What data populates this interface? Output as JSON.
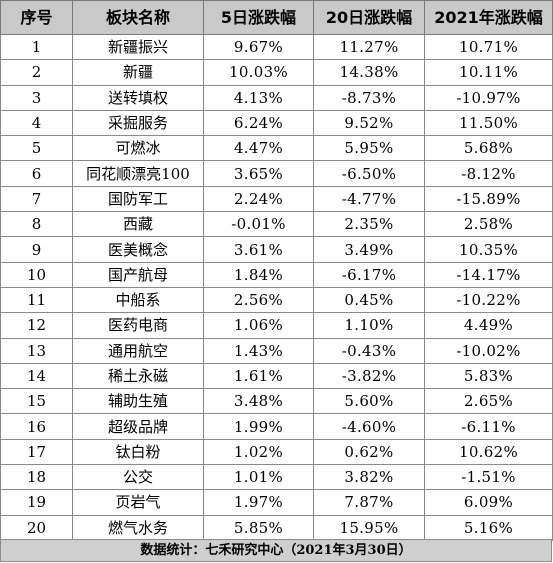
{
  "table": {
    "headers": [
      "序号",
      "板块名称",
      "5日涨跌幅",
      "20日涨跌幅",
      "2021年涨跌幅"
    ],
    "rows": [
      [
        "1",
        "新疆振兴",
        "9.67%",
        "11.27%",
        "10.71%"
      ],
      [
        "2",
        "新疆",
        "10.03%",
        "14.38%",
        "10.11%"
      ],
      [
        "3",
        "送转填权",
        "4.13%",
        "-8.73%",
        "-10.97%"
      ],
      [
        "4",
        "采掘服务",
        "6.24%",
        "9.52%",
        "11.50%"
      ],
      [
        "5",
        "可燃冰",
        "4.47%",
        "5.95%",
        "5.68%"
      ],
      [
        "6",
        "同花顺漂亮100",
        "3.65%",
        "-6.50%",
        "-8.12%"
      ],
      [
        "7",
        "国防军工",
        "2.24%",
        "-4.77%",
        "-15.89%"
      ],
      [
        "8",
        "西藏",
        "-0.01%",
        "2.35%",
        "2.58%"
      ],
      [
        "9",
        "医美概念",
        "3.61%",
        "3.49%",
        "10.35%"
      ],
      [
        "10",
        "国产航母",
        "1.84%",
        "-6.17%",
        "-14.17%"
      ],
      [
        "11",
        "中船系",
        "2.56%",
        "0.45%",
        "-10.22%"
      ],
      [
        "12",
        "医药电商",
        "1.06%",
        "1.10%",
        "4.49%"
      ],
      [
        "13",
        "通用航空",
        "1.43%",
        "-0.43%",
        "-10.02%"
      ],
      [
        "14",
        "稀土永磁",
        "1.61%",
        "-3.82%",
        "5.83%"
      ],
      [
        "15",
        "辅助生殖",
        "3.48%",
        "5.60%",
        "2.65%"
      ],
      [
        "16",
        "超级品牌",
        "1.99%",
        "-4.60%",
        "-6.11%"
      ],
      [
        "17",
        "钛白粉",
        "1.02%",
        "0.62%",
        "10.62%"
      ],
      [
        "18",
        "公交",
        "1.01%",
        "3.82%",
        "-1.51%"
      ],
      [
        "19",
        "页岩气",
        "1.97%",
        "7.87%",
        "6.09%"
      ],
      [
        "20",
        "燃气水务",
        "5.85%",
        "15.95%",
        "5.16%"
      ]
    ]
  },
  "footer": {
    "text": "数据统计：七禾研究中心（2021年3月30日）"
  }
}
